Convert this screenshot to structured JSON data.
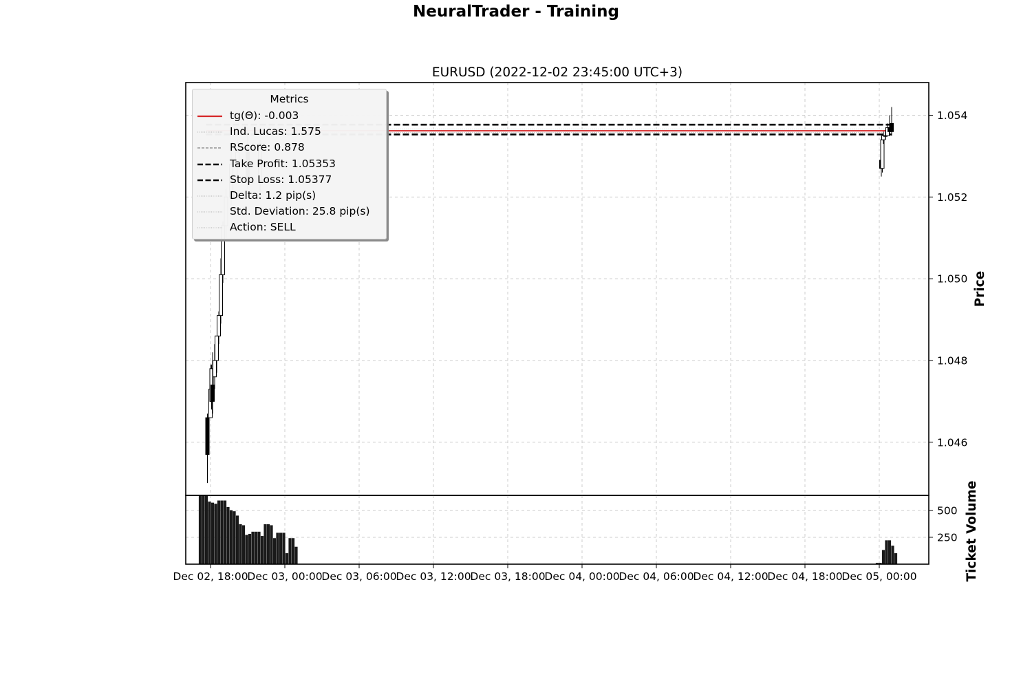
{
  "figure": {
    "title": "NeuralTrader - Training"
  },
  "colors": {
    "trend_line": "#d62728",
    "grid": "#cccccc",
    "candle": "#000000",
    "volume_bar": "#1a1a1a"
  },
  "chart_data": [
    {
      "type": "candlestick",
      "title": "EURUSD (2022-12-02 23:45:00 UTC+3)",
      "ylabel": "Price",
      "xlabel": "",
      "x_range": [
        "2022-12-02 16:00",
        "2022-12-05 04:00"
      ],
      "ylim": [
        1.0447,
        1.0548
      ],
      "y_ticks": [
        1.046,
        1.048,
        1.05,
        1.052,
        1.054
      ],
      "y_tick_labels": [
        "1.046",
        "1.048",
        "1.050",
        "1.052",
        "1.054"
      ],
      "y_axis_position": "right",
      "grid": true,
      "legend": {
        "title": "Metrics",
        "placement": "top-left",
        "entries": [
          {
            "label": "tg(Θ): -0.003",
            "style": "solid",
            "color": "#d62728"
          },
          {
            "label": "Ind. Lucas: 1.575",
            "style": "dotted",
            "color": "#b0b0b0"
          },
          {
            "label": "RScore: 0.878",
            "style": "dashed",
            "color": "#808080"
          },
          {
            "label": "Take Profit: 1.05353",
            "style": "bold-dashed",
            "color": "#000000"
          },
          {
            "label": "Stop Loss: 1.05377",
            "style": "bold-dashed",
            "color": "#000000"
          },
          {
            "label": "Delta: 1.2 pip(s)",
            "style": "dotted",
            "color": "#b0b0b0"
          },
          {
            "label": "Std. Deviation: 25.8 pip(s)",
            "style": "dotted",
            "color": "#b0b0b0"
          },
          {
            "label": "Action: SELL",
            "style": "dotted",
            "color": "#b0b0b0"
          }
        ]
      },
      "horizontal_lines": [
        {
          "name": "stop-loss",
          "y": 1.05377,
          "style": "bold-dashed"
        },
        {
          "name": "take-profit",
          "y": 1.05353,
          "style": "bold-dashed"
        },
        {
          "name": "trend",
          "y": 1.05362,
          "style": "solid-red"
        }
      ],
      "candles": [
        {
          "t": "2022-12-02 17:45",
          "o": 1.0466,
          "h": 1.0467,
          "l": 1.045,
          "c": 1.0457
        },
        {
          "t": "2022-12-02 18:00",
          "o": 1.0466,
          "h": 1.0479,
          "l": 1.0466,
          "c": 1.0473
        },
        {
          "t": "2022-12-02 18:05",
          "o": 1.047,
          "h": 1.0479,
          "l": 1.0468,
          "c": 1.0478
        },
        {
          "t": "2022-12-02 18:10",
          "o": 1.0474,
          "h": 1.0482,
          "l": 1.0467,
          "c": 1.047
        },
        {
          "t": "2022-12-02 18:20",
          "o": 1.0476,
          "h": 1.0484,
          "l": 1.0473,
          "c": 1.048
        },
        {
          "t": "2022-12-02 18:30",
          "o": 1.048,
          "h": 1.0486,
          "l": 1.0477,
          "c": 1.0486
        },
        {
          "t": "2022-12-02 18:40",
          "o": 1.0486,
          "h": 1.0492,
          "l": 1.0484,
          "c": 1.0491
        },
        {
          "t": "2022-12-02 18:50",
          "o": 1.0491,
          "h": 1.0505,
          "l": 1.0489,
          "c": 1.0501
        },
        {
          "t": "2022-12-02 19:00",
          "o": 1.0501,
          "h": 1.0514,
          "l": 1.0499,
          "c": 1.0513
        },
        {
          "t": "2022-12-02 19:15",
          "o": 1.0513,
          "h": 1.0522,
          "l": 1.051,
          "c": 1.052
        },
        {
          "t": "2022-12-02 19:40",
          "o": 1.052,
          "h": 1.0532,
          "l": 1.0518,
          "c": 1.0528
        },
        {
          "t": "2022-12-02 20:10",
          "o": 1.0528,
          "h": 1.0534,
          "l": 1.0525,
          "c": 1.0531
        },
        {
          "t": "2022-12-02 21:00",
          "o": 1.0531,
          "h": 1.0537,
          "l": 1.0522,
          "c": 1.0524
        },
        {
          "t": "2022-12-02 22:00",
          "o": 1.0524,
          "h": 1.0534,
          "l": 1.0521,
          "c": 1.0533
        },
        {
          "t": "2022-12-05 00:10",
          "o": 1.0529,
          "h": 1.0534,
          "l": 1.0525,
          "c": 1.0527
        },
        {
          "t": "2022-12-05 00:15",
          "o": 1.0527,
          "h": 1.0535,
          "l": 1.0526,
          "c": 1.0534
        },
        {
          "t": "2022-12-05 00:20",
          "o": 1.0534,
          "h": 1.0536,
          "l": 1.0533,
          "c": 1.0535
        },
        {
          "t": "2022-12-05 00:30",
          "o": 1.0535,
          "h": 1.0536,
          "l": 1.0534,
          "c": 1.0535
        },
        {
          "t": "2022-12-05 00:40",
          "o": 1.0535,
          "h": 1.0538,
          "l": 1.0535,
          "c": 1.0537
        },
        {
          "t": "2022-12-05 00:50",
          "o": 1.0537,
          "h": 1.054,
          "l": 1.0535,
          "c": 1.0536
        },
        {
          "t": "2022-12-05 01:00",
          "o": 1.0538,
          "h": 1.0542,
          "l": 1.0535,
          "c": 1.0536
        }
      ]
    },
    {
      "type": "bar",
      "title": "",
      "ylabel": "Ticket Volume",
      "ylim": [
        0,
        640
      ],
      "y_ticks": [
        250,
        500
      ],
      "y_tick_labels": [
        "250",
        "500"
      ],
      "x_ticks": [
        "2022-12-02 18:00",
        "2022-12-03 00:00",
        "2022-12-03 06:00",
        "2022-12-03 12:00",
        "2022-12-03 18:00",
        "2022-12-04 00:00",
        "2022-12-04 06:00",
        "2022-12-04 12:00",
        "2022-12-04 18:00",
        "2022-12-05 00:00"
      ],
      "x_tick_labels": [
        "Dec 02, 18:00",
        "Dec 03, 00:00",
        "Dec 03, 06:00",
        "Dec 03, 12:00",
        "Dec 03, 18:00",
        "Dec 04, 00:00",
        "Dec 04, 06:00",
        "Dec 04, 12:00",
        "Dec 04, 18:00",
        "Dec 05, 00:00"
      ],
      "grid": true,
      "bars": [
        {
          "t": "2022-12-02 17:10",
          "v": 640
        },
        {
          "t": "2022-12-02 17:25",
          "v": 640
        },
        {
          "t": "2022-12-02 17:40",
          "v": 640
        },
        {
          "t": "2022-12-02 17:55",
          "v": 580
        },
        {
          "t": "2022-12-02 18:10",
          "v": 570
        },
        {
          "t": "2022-12-02 18:25",
          "v": 560
        },
        {
          "t": "2022-12-02 18:40",
          "v": 590
        },
        {
          "t": "2022-12-02 18:55",
          "v": 590
        },
        {
          "t": "2022-12-02 19:10",
          "v": 590
        },
        {
          "t": "2022-12-02 19:25",
          "v": 530
        },
        {
          "t": "2022-12-02 19:40",
          "v": 500
        },
        {
          "t": "2022-12-02 19:55",
          "v": 490
        },
        {
          "t": "2022-12-02 20:10",
          "v": 450
        },
        {
          "t": "2022-12-02 20:25",
          "v": 370
        },
        {
          "t": "2022-12-02 20:40",
          "v": 360
        },
        {
          "t": "2022-12-02 20:55",
          "v": 270
        },
        {
          "t": "2022-12-02 21:10",
          "v": 280
        },
        {
          "t": "2022-12-02 21:25",
          "v": 300
        },
        {
          "t": "2022-12-02 21:40",
          "v": 300
        },
        {
          "t": "2022-12-02 21:55",
          "v": 300
        },
        {
          "t": "2022-12-02 22:10",
          "v": 260
        },
        {
          "t": "2022-12-02 22:25",
          "v": 370
        },
        {
          "t": "2022-12-02 22:40",
          "v": 370
        },
        {
          "t": "2022-12-02 22:55",
          "v": 360
        },
        {
          "t": "2022-12-02 23:10",
          "v": 240
        },
        {
          "t": "2022-12-02 23:25",
          "v": 290
        },
        {
          "t": "2022-12-02 23:40",
          "v": 290
        },
        {
          "t": "2022-12-02 23:55",
          "v": 290
        },
        {
          "t": "2022-12-03 00:10",
          "v": 100
        },
        {
          "t": "2022-12-03 00:25",
          "v": 240
        },
        {
          "t": "2022-12-03 00:40",
          "v": 240
        },
        {
          "t": "2022-12-03 00:55",
          "v": 160
        },
        {
          "t": "2022-12-04 23:50",
          "v": 10
        },
        {
          "t": "2022-12-05 00:05",
          "v": 10
        },
        {
          "t": "2022-12-05 00:20",
          "v": 130
        },
        {
          "t": "2022-12-05 00:35",
          "v": 220
        },
        {
          "t": "2022-12-05 00:50",
          "v": 220
        },
        {
          "t": "2022-12-05 01:05",
          "v": 170
        },
        {
          "t": "2022-12-05 01:20",
          "v": 100
        }
      ]
    }
  ]
}
